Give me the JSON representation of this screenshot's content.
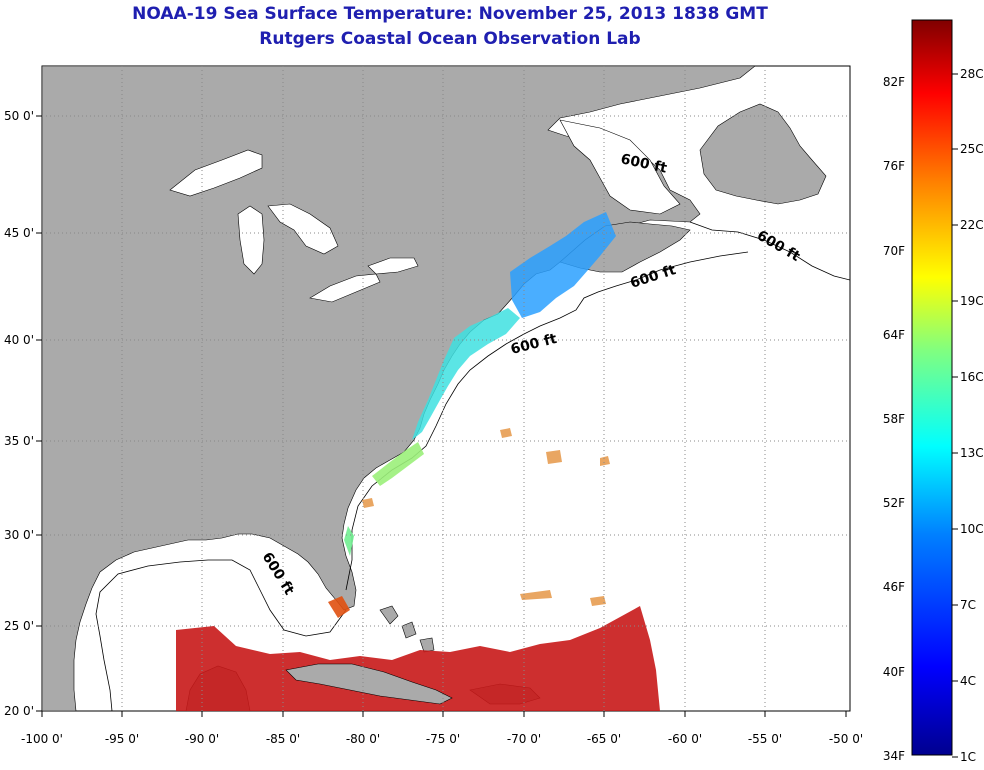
{
  "header": {
    "title": "NOAA-19 Sea Surface Temperature:  November 25, 2013 1838 GMT",
    "subtitle": "Rutgers Coastal Ocean Observation Lab"
  },
  "map": {
    "lon_labels": [
      "-100 0'",
      "-95 0'",
      "-90 0'",
      "-85 0'",
      "-80 0'",
      "-75 0'",
      "-70 0'",
      "-65 0'",
      "-60 0'",
      "-55 0'",
      "-50 0'"
    ],
    "lat_labels": [
      "20 0'",
      "25 0'",
      "30 0'",
      "35 0'",
      "40 0'",
      "45 0'",
      "50 0'"
    ],
    "isobath_labels": [
      "600 ft",
      "600 ft",
      "600 ft",
      "600 ft",
      "600 ft"
    ],
    "colors": {
      "land": "#aaaaaa",
      "water": "#ffffff",
      "grid": "#888888"
    }
  },
  "colorbar": {
    "f_labels": [
      "82F",
      "76F",
      "70F",
      "64F",
      "58F",
      "52F",
      "46F",
      "40F",
      "34F"
    ],
    "c_labels": [
      "28C",
      "25C",
      "22C",
      "19C",
      "16C",
      "13C",
      "10C",
      "7C",
      "4C",
      "1C"
    ],
    "stops": [
      "#00008f",
      "#0000ff",
      "#0080ff",
      "#00ffff",
      "#80ff80",
      "#ffff00",
      "#ff8000",
      "#ff0000",
      "#800000"
    ]
  }
}
